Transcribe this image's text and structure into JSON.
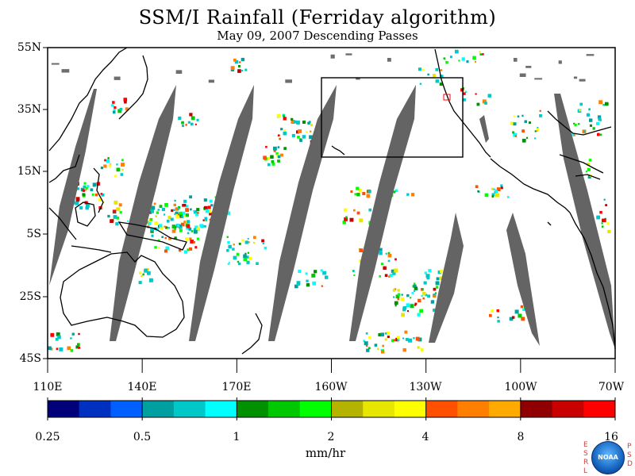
{
  "header": {
    "title": "SSM/I Rainfall (Ferriday algorithm)",
    "subtitle": "May 09, 2007  Descending Passes"
  },
  "map": {
    "lat_labels": [
      "55N",
      "35N",
      "15N",
      "5S",
      "25S",
      "45S"
    ],
    "lon_labels": [
      "110E",
      "140E",
      "170E",
      "160W",
      "130W",
      "100W",
      "70W"
    ],
    "extent": {
      "lon_west": "110E",
      "lon_east": "70W",
      "lat_north": "55N",
      "lat_south": "45S"
    },
    "swath_color": "#646464",
    "box_region": {
      "lon": [
        "160W",
        "125W"
      ],
      "lat": [
        "40N",
        "15N"
      ]
    }
  },
  "colorbar": {
    "colors": [
      "#00007a",
      "#0030c0",
      "#0060ff",
      "#00a0a0",
      "#00c8c8",
      "#00ffff",
      "#009000",
      "#00c800",
      "#00ff00",
      "#b4b400",
      "#e6e600",
      "#ffff00",
      "#ff5000",
      "#ff8000",
      "#ffaa00",
      "#900000",
      "#c80000",
      "#ff0000"
    ],
    "tick_labels": [
      "0.25",
      "0.5",
      "1",
      "2",
      "4",
      "8",
      "16"
    ],
    "units": "mm/hr"
  },
  "logo": {
    "left_letters": [
      "E",
      "S",
      "R",
      "L"
    ],
    "right_letters": [
      "P",
      "S",
      "D"
    ],
    "badge_text": "NOAA"
  }
}
